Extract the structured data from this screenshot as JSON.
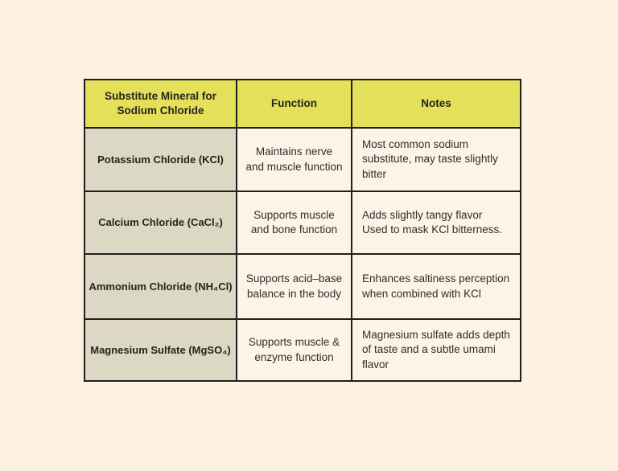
{
  "colors": {
    "page_bg": "#fdf2e2",
    "header_bg": "#e4e05a",
    "mineral_col_bg": "#ddd8c3",
    "cell_bg": "#fdf4e7",
    "border": "#1f1f1f",
    "text": "#2e2e2e"
  },
  "table": {
    "headers": [
      "Substitute Mineral for Sodium Chloride",
      "Function",
      "Notes"
    ],
    "rows": [
      {
        "mineral": "Potassium Chloride (KCl)",
        "function": "Maintains nerve and muscle function",
        "notes": "Most common sodium substitute, may taste slightly bitter"
      },
      {
        "mineral": "Calcium Chloride (CaCl₂)",
        "function": "Supports muscle and bone function",
        "notes": "Adds slightly tangy flavor\nUsed to mask KCl bitterness."
      },
      {
        "mineral": "Ammonium Chloride (NH₄Cl)",
        "function": "Supports acid–base balance in the body",
        "notes": "Enhances saltiness perception when combined with KCl"
      },
      {
        "mineral": "Magnesium Sulfate (MgSO₄)",
        "function": "Supports muscle & enzyme function",
        "notes": "Magnesium sulfate adds depth of taste and a subtle umami flavor"
      }
    ]
  }
}
